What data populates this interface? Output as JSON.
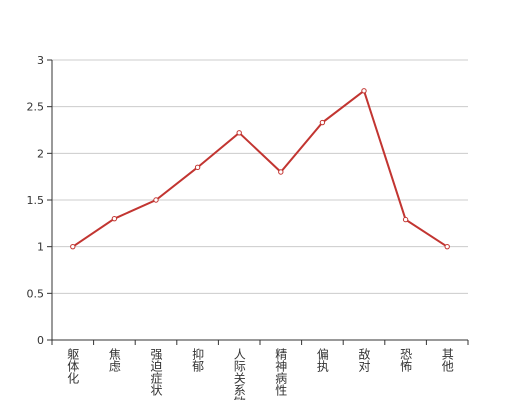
{
  "chart_data": {
    "type": "line",
    "categories": [
      "躯体化",
      "焦虑",
      "强迫症状",
      "抑郁",
      "人际关系敏感",
      "精神病性",
      "偏执",
      "敌对",
      "恐怖",
      "其他"
    ],
    "series": [
      {
        "color": "#c23531",
        "values": [
          1,
          1.3,
          1.5,
          1.85,
          2.22,
          1.8,
          2.33,
          2.67,
          1.29,
          1
        ]
      }
    ],
    "ylim": [
      0,
      3
    ],
    "yticks": [
      0,
      0.5,
      1,
      1.5,
      2,
      2.5,
      3
    ],
    "grid": true
  }
}
